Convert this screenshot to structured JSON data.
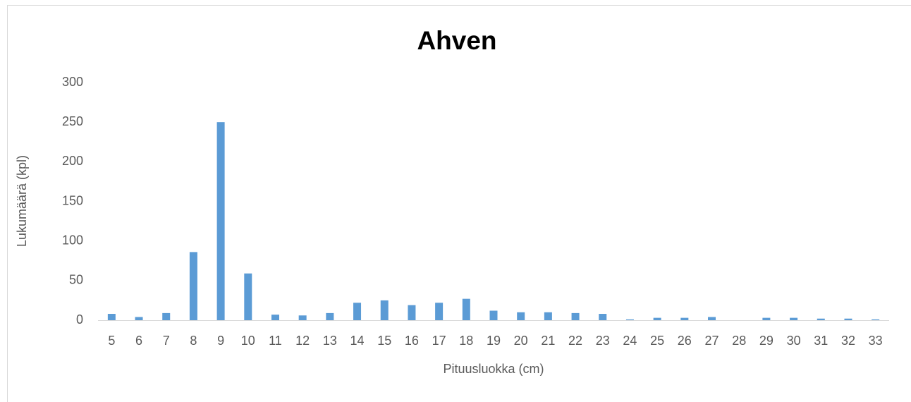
{
  "chart_data": {
    "type": "bar",
    "title": "Ahven",
    "x_label": "Pituusluokka (cm)",
    "y_label": "Lukumäärä (kpl)",
    "categories": [
      "5",
      "6",
      "7",
      "8",
      "9",
      "10",
      "11",
      "12",
      "13",
      "14",
      "15",
      "16",
      "17",
      "18",
      "19",
      "20",
      "21",
      "22",
      "23",
      "24",
      "25",
      "26",
      "27",
      "28",
      "29",
      "30",
      "31",
      "32",
      "33"
    ],
    "values": [
      8,
      4,
      9,
      86,
      250,
      59,
      7,
      6,
      9,
      22,
      25,
      19,
      22,
      27,
      12,
      10,
      10,
      9,
      8,
      1,
      3,
      3,
      4,
      0,
      3,
      3,
      2,
      2,
      1
    ],
    "color": "#5b9bd5",
    "ylim": [
      0,
      300
    ],
    "yticks": [
      0,
      50,
      100,
      150,
      200,
      250,
      300
    ],
    "grid": false
  }
}
